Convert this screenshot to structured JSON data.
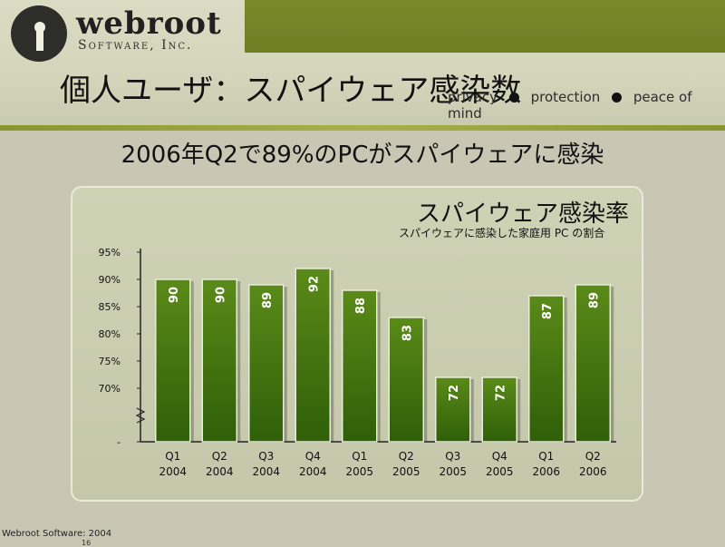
{
  "brand": {
    "name": "webroot",
    "sub": "Software, Inc."
  },
  "slide": {
    "title": "個人ユーザ：スパイウェア感染数",
    "tagline": [
      "privacy",
      "protection",
      "peace of mind"
    ],
    "headline": "2006年Q2で89%のPCがスパイウェアに感染"
  },
  "footer": {
    "text": "Webroot Software: 2004",
    "page": "16"
  },
  "colors": {
    "bar_top": "#5a8a18",
    "bar_bottom": "#2f5f08",
    "olive": "#6e7e22"
  },
  "chart_data": {
    "type": "bar",
    "title": "スパイウェア感染率",
    "subtitle": "スパイウェアに感染した家庭用 PC の割合",
    "categories": [
      [
        "Q1",
        "2004"
      ],
      [
        "Q2",
        "2004"
      ],
      [
        "Q3",
        "2004"
      ],
      [
        "Q4",
        "2004"
      ],
      [
        "Q1",
        "2005"
      ],
      [
        "Q2",
        "2005"
      ],
      [
        "Q3",
        "2005"
      ],
      [
        "Q4",
        "2005"
      ],
      [
        "Q1",
        "2006"
      ],
      [
        "Q2",
        "2006"
      ]
    ],
    "values": [
      90,
      90,
      89,
      92,
      88,
      83,
      72,
      72,
      87,
      89
    ],
    "yticks": [
      "95%",
      "90%",
      "85%",
      "80%",
      "75%",
      "70%",
      "-"
    ],
    "ylim": [
      65,
      95
    ],
    "axis_break": true
  }
}
